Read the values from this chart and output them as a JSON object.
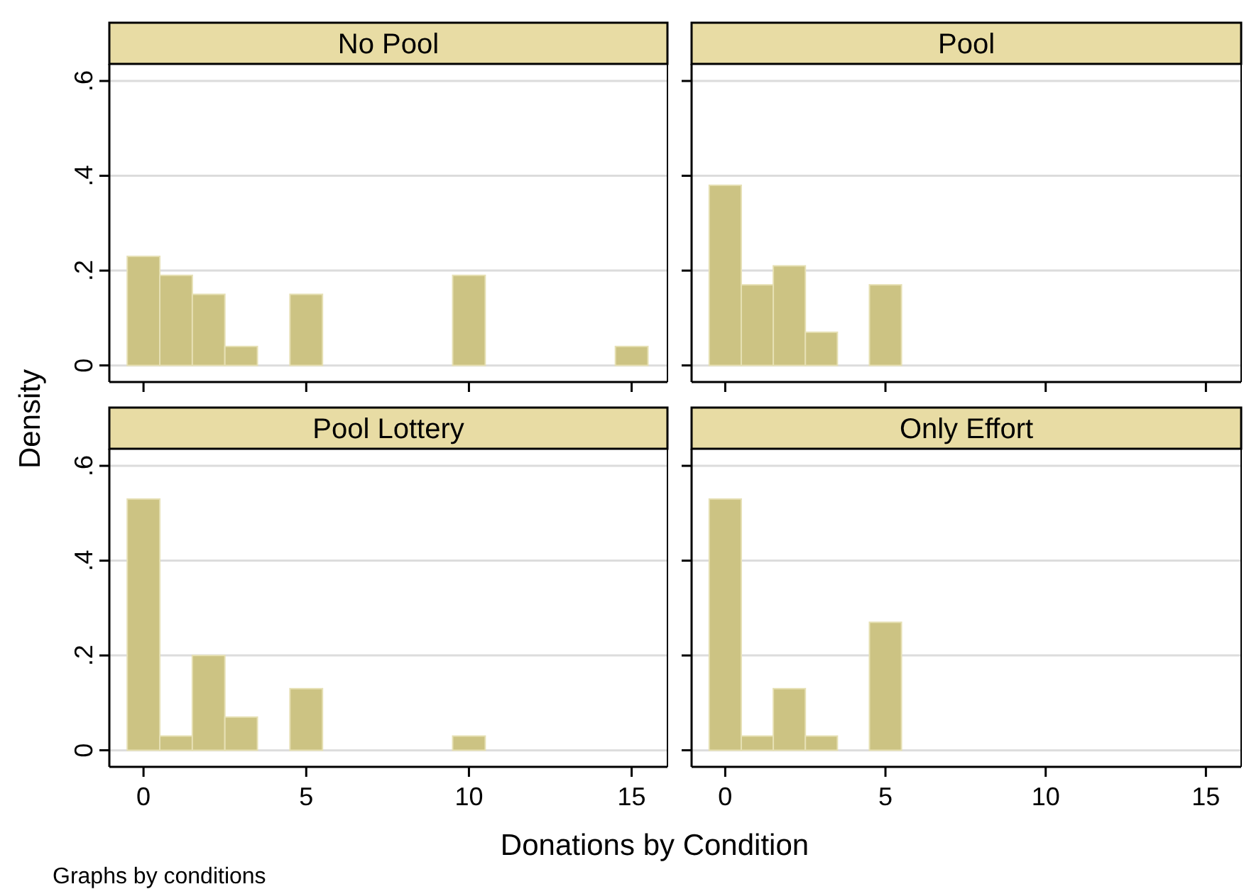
{
  "chart_data": [
    {
      "type": "histogram",
      "title": "No Pool",
      "ylabel": "Density",
      "xlabel": "Donations by Condition",
      "annotations": [
        "Graphs by conditions"
      ],
      "bins": [
        -0.5,
        0.5,
        1.5,
        2.5,
        3.5,
        4.5,
        5.5,
        6.5,
        7.5,
        8.5,
        9.5,
        10.5,
        11.5,
        12.5,
        13.5,
        14.5,
        15.5
      ],
      "values": [
        0.23,
        0.19,
        0.15,
        0.04,
        0,
        0.15,
        0,
        0,
        0,
        0,
        0.19,
        0,
        0,
        0,
        0,
        0.04
      ],
      "color": "#ccc383",
      "xlim": [
        -1.05,
        16.1
      ],
      "ylim": [
        -0.035,
        0.636
      ],
      "xticks": [
        {
          "value": 0,
          "label": null
        },
        {
          "value": 5,
          "label": null
        },
        {
          "value": 10,
          "label": null
        },
        {
          "value": 15,
          "label": null
        }
      ],
      "yticks": [
        {
          "value": 0,
          "label": "0"
        },
        {
          "value": 0.2,
          "label": ".2"
        },
        {
          "value": 0.4,
          "label": ".4"
        },
        {
          "value": 0.6,
          "label": ".6"
        }
      ],
      "grid": "y",
      "tick_labels": "y"
    },
    {
      "type": "histogram",
      "title": "Pool",
      "bins": [
        -0.5,
        0.5,
        1.5,
        2.5,
        3.5,
        4.5,
        5.5
      ],
      "values": [
        0.38,
        0.17,
        0.21,
        0.07,
        0,
        0.17
      ],
      "color": "#ccc383",
      "xlim": [
        -1.05,
        16.1
      ],
      "ylim": [
        -0.035,
        0.636
      ],
      "xticks": [
        {
          "value": 0,
          "label": null
        },
        {
          "value": 5,
          "label": null
        },
        {
          "value": 10,
          "label": null
        },
        {
          "value": 15,
          "label": null
        }
      ],
      "yticks": [
        {
          "value": 0,
          "label": null
        },
        {
          "value": 0.2,
          "label": null
        },
        {
          "value": 0.4,
          "label": null
        },
        {
          "value": 0.6,
          "label": null
        }
      ],
      "grid": "y",
      "tick_labels": false
    },
    {
      "type": "histogram",
      "title": "Pool Lottery",
      "bins": [
        -0.5,
        0.5,
        1.5,
        2.5,
        3.5,
        4.5,
        5.5,
        6.5,
        7.5,
        8.5,
        9.5,
        10.5
      ],
      "values": [
        0.53,
        0.03,
        0.2,
        0.07,
        0,
        0.13,
        0,
        0,
        0,
        0,
        0.03
      ],
      "color": "#ccc383",
      "xlim": [
        -1.05,
        16.1
      ],
      "ylim": [
        -0.035,
        0.636
      ],
      "xticks": [
        {
          "value": 0,
          "label": "0"
        },
        {
          "value": 5,
          "label": "5"
        },
        {
          "value": 10,
          "label": "10"
        },
        {
          "value": 15,
          "label": "15"
        }
      ],
      "yticks": [
        {
          "value": 0,
          "label": "0"
        },
        {
          "value": 0.2,
          "label": ".2"
        },
        {
          "value": 0.4,
          "label": ".4"
        },
        {
          "value": 0.6,
          "label": ".6"
        }
      ],
      "grid": "y"
    },
    {
      "type": "histogram",
      "title": "Only Effort",
      "bins": [
        -0.5,
        0.5,
        1.5,
        2.5,
        3.5,
        4.5,
        5.5
      ],
      "values": [
        0.53,
        0.03,
        0.13,
        0.03,
        0,
        0.27
      ],
      "color": "#ccc383",
      "xlim": [
        -1.05,
        16.1
      ],
      "ylim": [
        -0.035,
        0.636
      ],
      "xticks": [
        {
          "value": 0,
          "label": "0"
        },
        {
          "value": 5,
          "label": "5"
        },
        {
          "value": 10,
          "label": "10"
        },
        {
          "value": 15,
          "label": "15"
        }
      ],
      "yticks": [
        {
          "value": 0,
          "label": null
        },
        {
          "value": 0.2,
          "label": null
        },
        {
          "value": 0.4,
          "label": null
        },
        {
          "value": 0.6,
          "label": null
        }
      ],
      "grid": "y",
      "tick_labels": "x"
    }
  ]
}
